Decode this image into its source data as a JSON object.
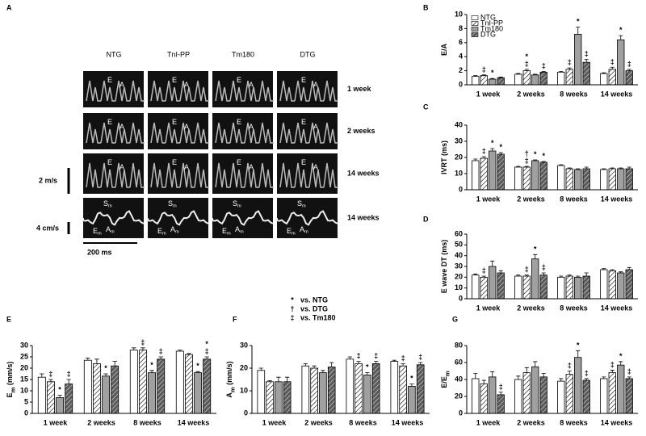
{
  "panel_a": {
    "label": "A",
    "columns": [
      "NTG",
      "TnI-PP",
      "Tm180",
      "DTG"
    ],
    "rows": [
      "1 week",
      "2 weeks",
      "14 weeks",
      "14 weeks"
    ],
    "wave_labels": [
      [
        [
          "E"
        ],
        [
          "A"
        ]
      ],
      [
        [
          "E"
        ],
        [
          "A"
        ]
      ],
      [
        [
          "E"
        ],
        [
          "A"
        ]
      ],
      [
        [
          "S",
          "m"
        ],
        [
          "E",
          "m"
        ],
        [
          "A",
          "m"
        ]
      ]
    ],
    "scale_labels": [
      "2 m/s",
      "4 cm/s",
      "200 ms"
    ]
  },
  "key": [
    {
      "symbol": "*",
      "text": "vs. NTG"
    },
    {
      "symbol": "†",
      "text": "vs. DTG"
    },
    {
      "symbol": "‡",
      "text": "vs. Tm180"
    }
  ],
  "chart_data": [
    {
      "type": "bar",
      "label": "B",
      "ylabel": [
        "E/A"
      ],
      "categories": [
        "1 week",
        "2 weeks",
        "8 weeks",
        "14 weeks"
      ],
      "ylim": [
        0,
        10
      ],
      "yticks": [
        0,
        2,
        4,
        6,
        8,
        10
      ],
      "legend": "upper left",
      "series": [
        {
          "name": "NTG",
          "color": "#ffffff",
          "hatch": false,
          "values": [
            1.2,
            1.5,
            1.8,
            1.6
          ],
          "errors": [
            0.1,
            0.1,
            0.1,
            0.1
          ],
          "annotations": [
            null,
            null,
            null,
            null
          ]
        },
        {
          "name": "TnI-PP",
          "color": "#ffffff",
          "hatch": true,
          "values": [
            1.3,
            2.0,
            2.2,
            2.2
          ],
          "errors": [
            0.1,
            0.2,
            0.2,
            0.3
          ],
          "annotations": [
            "‡",
            "*‡",
            "‡",
            "‡"
          ]
        },
        {
          "name": "Tm180",
          "color": "#a0a0a0",
          "hatch": false,
          "values": [
            0.8,
            1.4,
            7.2,
            6.4
          ],
          "errors": [
            0.1,
            0.1,
            1.0,
            0.6
          ],
          "annotations": [
            "*",
            null,
            "*",
            "*"
          ]
        },
        {
          "name": "DTG",
          "color": "#5a5a5a",
          "hatch": true,
          "values": [
            1.0,
            1.8,
            3.2,
            2.0
          ],
          "errors": [
            0.1,
            0.1,
            0.4,
            0.2
          ],
          "annotations": [
            null,
            "‡",
            "‡",
            "‡"
          ]
        }
      ]
    },
    {
      "type": "bar",
      "label": "C",
      "ylabel": [
        "IVRT (ms)"
      ],
      "categories": [
        "1 week",
        "2 weeks",
        "8 weeks",
        "14 weeks"
      ],
      "ylim": [
        0,
        40
      ],
      "yticks": [
        0,
        10,
        20,
        30,
        40
      ],
      "series": [
        {
          "color": "#ffffff",
          "hatch": false,
          "values": [
            18,
            14,
            15,
            12.5
          ],
          "errors": [
            1,
            0.5,
            0.5,
            0.5
          ],
          "annotations": [
            null,
            null,
            null,
            null
          ]
        },
        {
          "color": "#ffffff",
          "hatch": true,
          "values": [
            19.5,
            14,
            13,
            13
          ],
          "errors": [
            1,
            0.5,
            0.5,
            0.5
          ],
          "annotations": [
            "‡",
            "†‡",
            null,
            null
          ]
        },
        {
          "color": "#a0a0a0",
          "hatch": false,
          "values": [
            24,
            18,
            12.5,
            13
          ],
          "errors": [
            1.5,
            0.5,
            0.5,
            0.5
          ],
          "annotations": [
            "*",
            "*",
            null,
            null
          ]
        },
        {
          "color": "#5a5a5a",
          "hatch": true,
          "values": [
            22,
            17,
            13,
            13
          ],
          "errors": [
            1,
            0.5,
            1,
            1
          ],
          "annotations": [
            "*",
            "*",
            null,
            null
          ]
        }
      ]
    },
    {
      "type": "bar",
      "label": "D",
      "ylabel": [
        "E wave DT (ms)"
      ],
      "categories": [
        "1 week",
        "2 weeks",
        "8 weeks",
        "14 weeks"
      ],
      "ylim": [
        0,
        60
      ],
      "yticks": [
        0,
        10,
        20,
        30,
        40,
        50,
        60
      ],
      "series": [
        {
          "color": "#ffffff",
          "hatch": false,
          "values": [
            22,
            21,
            20,
            27
          ],
          "errors": [
            1,
            1,
            1,
            1
          ],
          "annotations": [
            null,
            null,
            null,
            null
          ]
        },
        {
          "color": "#ffffff",
          "hatch": true,
          "values": [
            20,
            21,
            21,
            26
          ],
          "errors": [
            1,
            1,
            1,
            1
          ],
          "annotations": [
            "‡",
            "‡",
            null,
            null
          ]
        },
        {
          "color": "#a0a0a0",
          "hatch": false,
          "values": [
            30,
            37,
            20,
            24
          ],
          "errors": [
            5,
            4,
            1,
            1
          ],
          "annotations": [
            null,
            "*",
            null,
            null
          ]
        },
        {
          "color": "#5a5a5a",
          "hatch": true,
          "values": [
            24,
            22,
            21,
            27
          ],
          "errors": [
            2,
            2,
            3,
            2
          ],
          "annotations": [
            null,
            "‡",
            null,
            null
          ]
        }
      ]
    },
    {
      "type": "bar",
      "label": "E",
      "ylabel": [
        "E",
        "m",
        " (mm/s)"
      ],
      "categories": [
        "1 week",
        "2 weeks",
        "8 weeks",
        "14 weeks"
      ],
      "ylim": [
        0,
        30
      ],
      "yticks": [
        0,
        5,
        10,
        15,
        20,
        25,
        30
      ],
      "series": [
        {
          "color": "#ffffff",
          "hatch": false,
          "values": [
            16,
            23.5,
            28,
            27.5
          ],
          "errors": [
            1.5,
            1,
            1,
            0.5
          ],
          "annotations": [
            null,
            null,
            null,
            null
          ]
        },
        {
          "color": "#ffffff",
          "hatch": true,
          "values": [
            14,
            22,
            28,
            26
          ],
          "errors": [
            1,
            2,
            1,
            0.5
          ],
          "annotations": [
            "‡",
            null,
            "‡",
            null
          ]
        },
        {
          "color": "#a0a0a0",
          "hatch": false,
          "values": [
            7,
            16.5,
            18,
            18
          ],
          "errors": [
            1,
            1,
            1,
            0.5
          ],
          "annotations": [
            "*",
            "*",
            "*",
            "*"
          ]
        },
        {
          "color": "#5a5a5a",
          "hatch": true,
          "values": [
            13,
            21,
            24,
            24
          ],
          "errors": [
            2,
            2,
            1,
            1
          ],
          "annotations": [
            "‡",
            null,
            "‡",
            "*‡"
          ]
        }
      ]
    },
    {
      "type": "bar",
      "label": "F",
      "ylabel": [
        "A",
        "m",
        " (mm/s)"
      ],
      "categories": [
        "1 week",
        "2 weeks",
        "8 weeks",
        "14 weeks"
      ],
      "ylim": [
        0,
        30
      ],
      "yticks": [
        0,
        10,
        20,
        30
      ],
      "series": [
        {
          "color": "#ffffff",
          "hatch": false,
          "values": [
            19,
            21,
            24,
            23
          ],
          "errors": [
            1,
            1,
            1,
            0.5
          ],
          "annotations": [
            null,
            null,
            null,
            null
          ]
        },
        {
          "color": "#ffffff",
          "hatch": true,
          "values": [
            14,
            20,
            22,
            21
          ],
          "errors": [
            0.5,
            1,
            1,
            1
          ],
          "annotations": [
            null,
            null,
            "‡",
            "‡"
          ]
        },
        {
          "color": "#a0a0a0",
          "hatch": false,
          "values": [
            14,
            18,
            17,
            12
          ],
          "errors": [
            2,
            1,
            1,
            1
          ],
          "annotations": [
            null,
            null,
            "*",
            "*"
          ]
        },
        {
          "color": "#5a5a5a",
          "hatch": true,
          "values": [
            14,
            20.5,
            22,
            21.5
          ],
          "errors": [
            2,
            2,
            1,
            1
          ],
          "annotations": [
            null,
            null,
            "‡",
            "‡"
          ]
        }
      ]
    },
    {
      "type": "bar",
      "label": "G",
      "ylabel": [
        "E/E",
        "m"
      ],
      "categories": [
        "1 week",
        "2 weeks",
        "8 weeks",
        "14 weeks"
      ],
      "ylim": [
        0,
        80
      ],
      "yticks": [
        0,
        20,
        40,
        60,
        80
      ],
      "series": [
        {
          "color": "#ffffff",
          "hatch": false,
          "values": [
            41,
            40,
            38,
            41
          ],
          "errors": [
            6,
            4,
            3,
            2
          ],
          "annotations": [
            null,
            null,
            null,
            null
          ]
        },
        {
          "color": "#ffffff",
          "hatch": true,
          "values": [
            35,
            48,
            46,
            48
          ],
          "errors": [
            4,
            6,
            4,
            3
          ],
          "annotations": [
            null,
            null,
            "‡",
            "‡"
          ]
        },
        {
          "color": "#a0a0a0",
          "hatch": false,
          "values": [
            43,
            55,
            66,
            57
          ],
          "errors": [
            6,
            6,
            8,
            4
          ],
          "annotations": [
            null,
            null,
            "*",
            "*"
          ]
        },
        {
          "color": "#5a5a5a",
          "hatch": true,
          "values": [
            22,
            43,
            39,
            41
          ],
          "errors": [
            3,
            4,
            2,
            2
          ],
          "annotations": [
            "‡",
            null,
            "‡",
            "‡"
          ]
        }
      ]
    }
  ]
}
